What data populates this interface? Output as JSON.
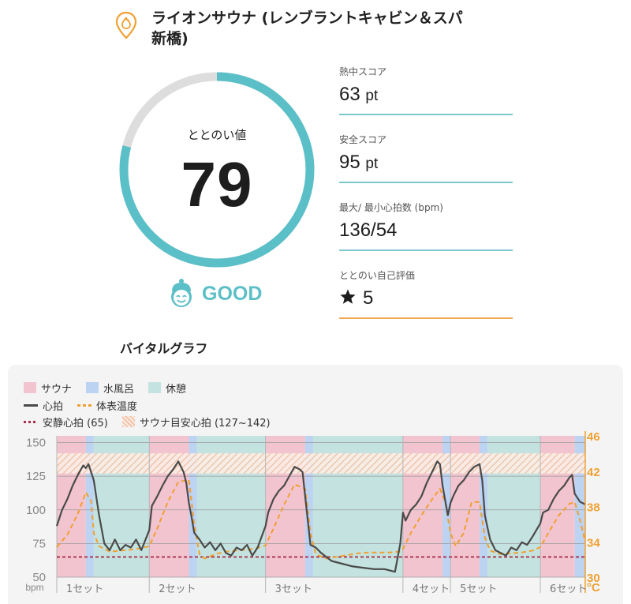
{
  "facility": {
    "name": "ライオンサウナ (レンブラントキャビン＆スパ新橋)",
    "icon": "flame-pin-icon"
  },
  "gauge": {
    "label": "ととのい値",
    "value": "79",
    "fraction": 0.79,
    "color": "#5bbfc7",
    "track_color": "#dddddd"
  },
  "status": {
    "text": "GOOD",
    "icon": "smiling-face-cap-icon",
    "color": "#5bbfc7"
  },
  "metrics": [
    {
      "label": "熱中スコア",
      "value": "63",
      "unit": "pt"
    },
    {
      "label": "安全スコア",
      "value": "95",
      "unit": "pt"
    },
    {
      "label": "最大/ 最小心拍数 (bpm)",
      "value": "136/54",
      "unit": ""
    },
    {
      "label": "ととのい自己評価",
      "value": "5",
      "unit": "",
      "icon": "star-icon"
    }
  ],
  "vital_graph": {
    "title": "バイタルグラフ",
    "legend": {
      "sauna": "サウナ",
      "cold_bath": "水風呂",
      "rest": "休憩",
      "heart_rate": "心拍",
      "body_temp": "体表温度",
      "resting_hr": "安静心拍 (65)",
      "sauna_target_hr": "サウナ目安心拍 (127~142)"
    },
    "colors": {
      "sauna": "#f2c4d0",
      "cold_bath": "#bdd3f2",
      "rest": "#c4e3e0",
      "heart_rate": "#4a4a4a",
      "body_temp": "#f0a030",
      "resting_hr": "#a8304a",
      "temp_axis": "#f0a030"
    }
  },
  "chart_data": {
    "type": "line",
    "left_axis": {
      "unit": "bpm",
      "ylim": [
        50,
        155
      ],
      "ticks": [
        "150",
        "125",
        "100",
        "75",
        "50"
      ],
      "tick_values": [
        150,
        125,
        100,
        75,
        50
      ]
    },
    "right_axis": {
      "unit": "°C",
      "ylim": [
        30,
        46
      ],
      "ticks": [
        "46",
        "42",
        "38",
        "34",
        "30"
      ],
      "tick_values": [
        46,
        42,
        38,
        34,
        30
      ]
    },
    "x_labels": [
      "1セット",
      "2セット",
      "3セット",
      "4セット",
      "5セット",
      "6セット"
    ],
    "x_range": [
      0,
      100
    ],
    "set_boundaries": [
      0,
      17.5,
      39.5,
      65.5,
      74.5,
      91.5,
      100
    ],
    "phases": [
      {
        "type": "sauna",
        "start": 0,
        "end": 5.5
      },
      {
        "type": "cold_bath",
        "start": 5.5,
        "end": 7
      },
      {
        "type": "rest",
        "start": 7,
        "end": 17.5
      },
      {
        "type": "sauna",
        "start": 17.5,
        "end": 25
      },
      {
        "type": "cold_bath",
        "start": 25,
        "end": 26.5
      },
      {
        "type": "rest",
        "start": 26.5,
        "end": 39.5
      },
      {
        "type": "sauna",
        "start": 39.5,
        "end": 47
      },
      {
        "type": "cold_bath",
        "start": 47,
        "end": 48.5
      },
      {
        "type": "rest",
        "start": 48.5,
        "end": 65.5
      },
      {
        "type": "sauna",
        "start": 65.5,
        "end": 73
      },
      {
        "type": "cold_bath",
        "start": 73,
        "end": 74.5
      },
      {
        "type": "sauna",
        "start": 74.5,
        "end": 80
      },
      {
        "type": "cold_bath",
        "start": 80,
        "end": 81.5
      },
      {
        "type": "rest",
        "start": 81.5,
        "end": 91.5
      },
      {
        "type": "sauna",
        "start": 91.5,
        "end": 98
      },
      {
        "type": "cold_bath",
        "start": 98,
        "end": 100
      }
    ],
    "resting_hr": 65,
    "target_band": [
      127,
      142
    ],
    "series": [
      {
        "name": "心拍",
        "axis": "left",
        "x": [
          0,
          1,
          2,
          3,
          4,
          5,
          5.5,
          6,
          7,
          8,
          9,
          10,
          11,
          12,
          13,
          14,
          15,
          16,
          17.5,
          18,
          19,
          20,
          21,
          22,
          23,
          24,
          24.5,
          25,
          25.5,
          26,
          27,
          28,
          29,
          30,
          31,
          32,
          33,
          34,
          35,
          36,
          37,
          38,
          39.5,
          40,
          41,
          42,
          43,
          44,
          45,
          46,
          46.5,
          47,
          48,
          49,
          50,
          52,
          54,
          56,
          58,
          60,
          62,
          64,
          65,
          65.5,
          66,
          67,
          68,
          69,
          70,
          71,
          72,
          72.5,
          73,
          74,
          74.5,
          75,
          76,
          77,
          78,
          79,
          80,
          80.5,
          81,
          82,
          83,
          84,
          85,
          86,
          87,
          88,
          89,
          90,
          91.5,
          92,
          93,
          94,
          95,
          96,
          97,
          97.5,
          98,
          99,
          100
        ],
        "values": [
          88,
          100,
          108,
          118,
          126,
          133,
          131,
          134,
          122,
          96,
          75,
          70,
          78,
          70,
          74,
          72,
          78,
          70,
          85,
          103,
          110,
          118,
          125,
          130,
          136,
          128,
          120,
          105,
          95,
          83,
          78,
          72,
          76,
          70,
          75,
          68,
          66,
          72,
          70,
          74,
          66,
          72,
          88,
          98,
          108,
          114,
          118,
          125,
          132,
          130,
          128,
          110,
          74,
          72,
          68,
          62,
          60,
          58,
          57,
          56,
          56,
          54,
          75,
          98,
          92,
          100,
          104,
          110,
          120,
          128,
          136,
          134,
          118,
          96,
          105,
          110,
          118,
          122,
          128,
          132,
          134,
          122,
          96,
          78,
          70,
          68,
          66,
          72,
          70,
          76,
          74,
          80,
          90,
          98,
          100,
          108,
          114,
          118,
          124,
          126,
          112,
          106,
          104
        ]
      },
      {
        "name": "体表温度",
        "axis": "right",
        "x": [
          0,
          2,
          4,
          5.5,
          6.5,
          7,
          8,
          10,
          12,
          14,
          16,
          17.5,
          19,
          21,
          23,
          25,
          26,
          27,
          28,
          30,
          32,
          34,
          36,
          38,
          39.5,
          41,
          43,
          45,
          47,
          48,
          49,
          51,
          53,
          55,
          57,
          59,
          61,
          63,
          65,
          65.5,
          67,
          69,
          71,
          72.5,
          73.5,
          74.5,
          75.5,
          77,
          78.5,
          80,
          81,
          82,
          84,
          86,
          88,
          90,
          91.5,
          93,
          95,
          97,
          98,
          99,
          100
        ],
        "values": [
          33.4,
          34.8,
          37.2,
          39.6,
          38.6,
          35,
          33.5,
          32.9,
          33,
          33.1,
          33.3,
          33.5,
          35.5,
          38.5,
          40.8,
          41,
          36,
          32.6,
          32.1,
          32.6,
          32.9,
          33,
          33.1,
          33.3,
          33.6,
          35.5,
          38.2,
          40.5,
          40,
          35,
          32.6,
          32.1,
          32.3,
          32.5,
          32.7,
          32.8,
          32.8,
          32.8,
          32.9,
          33.2,
          35,
          37,
          38.8,
          40,
          38.5,
          35,
          33.5,
          35,
          38.5,
          38.5,
          34.5,
          33,
          32.6,
          32.7,
          32.8,
          33,
          33.4,
          35,
          37,
          38.3,
          38.5,
          36.5,
          34
        ]
      }
    ]
  }
}
